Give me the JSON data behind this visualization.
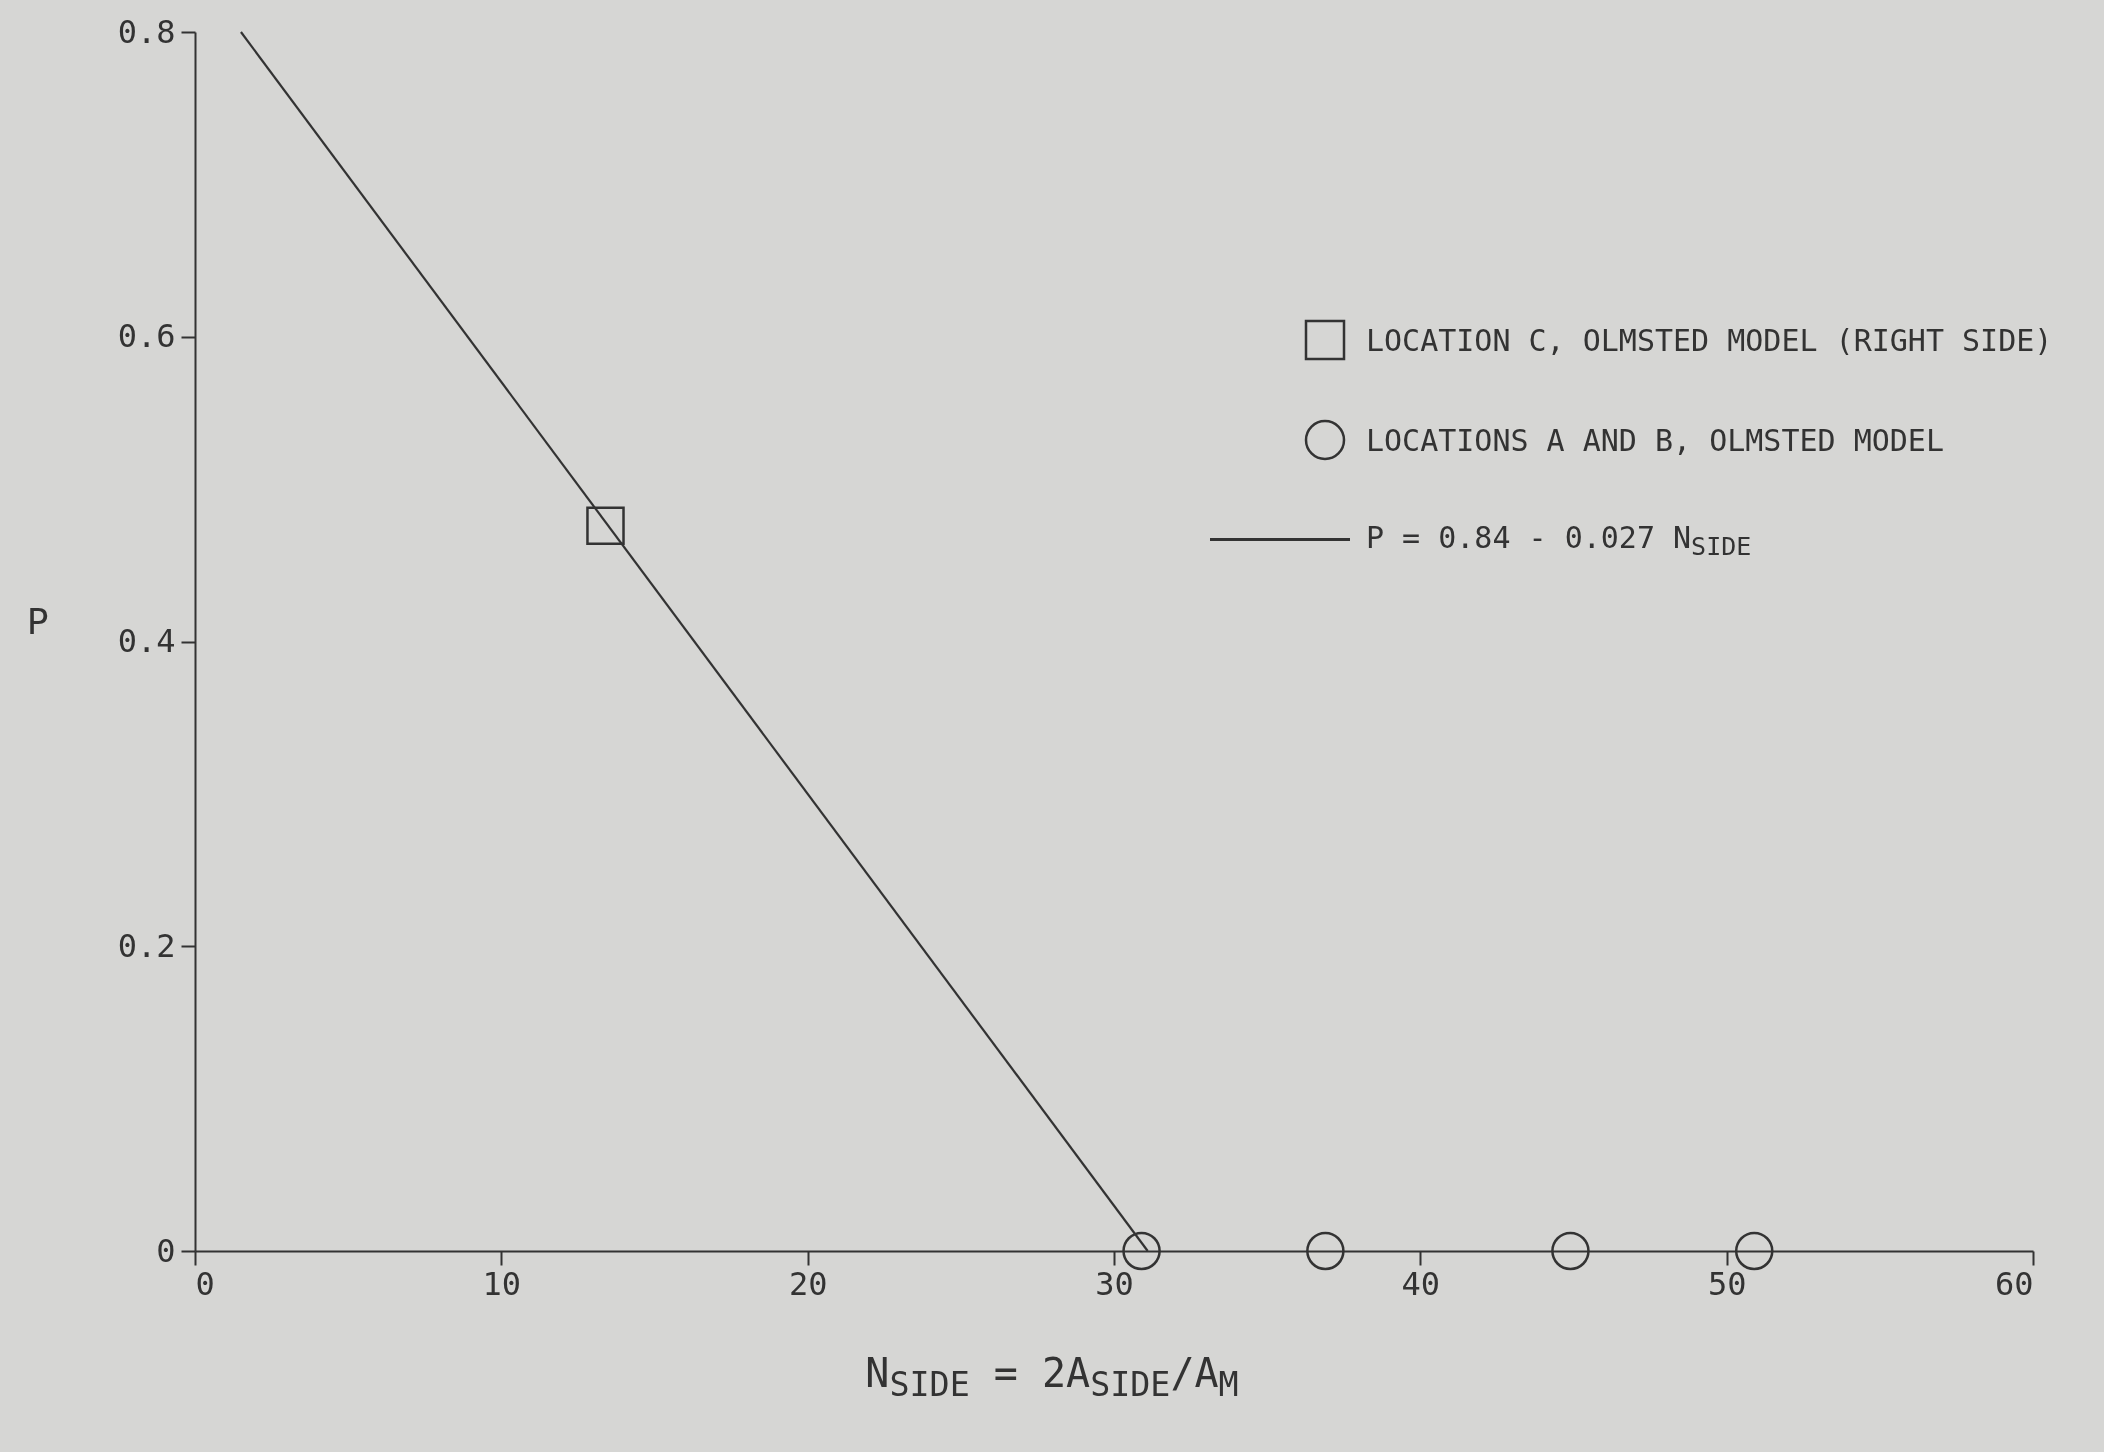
{
  "chart_data": {
    "type": "scatter",
    "xlabel": "N$_{SIDE}$ = 2A$_{SIDE}$/A$_{M}$",
    "ylabel": "P",
    "xlim": [
      0,
      60
    ],
    "ylim": [
      0,
      0.8
    ],
    "xticks": [
      0,
      10,
      20,
      30,
      40,
      50,
      60
    ],
    "yticks": [
      0,
      0.2,
      0.4,
      0.6,
      0.8
    ],
    "grid": false,
    "legend": "top right",
    "series": [
      {
        "name": "LOCATION C, OLMSTED MODEL (RIGHT SIDE)",
        "marker": "square",
        "color": "#333333",
        "x": [
          13.4
        ],
        "values": [
          0.476
        ]
      },
      {
        "name": "LOCATIONS A AND B, OLMSTED MODEL",
        "marker": "circle",
        "color": "#333333",
        "x": [
          30.9,
          36.9,
          44.9,
          50.9
        ],
        "values": [
          0,
          0,
          0,
          0
        ]
      },
      {
        "name": "P = 0.84 - 0.027 N$_{SIDE}$",
        "type": "line",
        "marker": "none",
        "color": "#333333",
        "x": [
          1.5,
          31.1
        ],
        "values": [
          0.8,
          0
        ]
      }
    ]
  }
}
